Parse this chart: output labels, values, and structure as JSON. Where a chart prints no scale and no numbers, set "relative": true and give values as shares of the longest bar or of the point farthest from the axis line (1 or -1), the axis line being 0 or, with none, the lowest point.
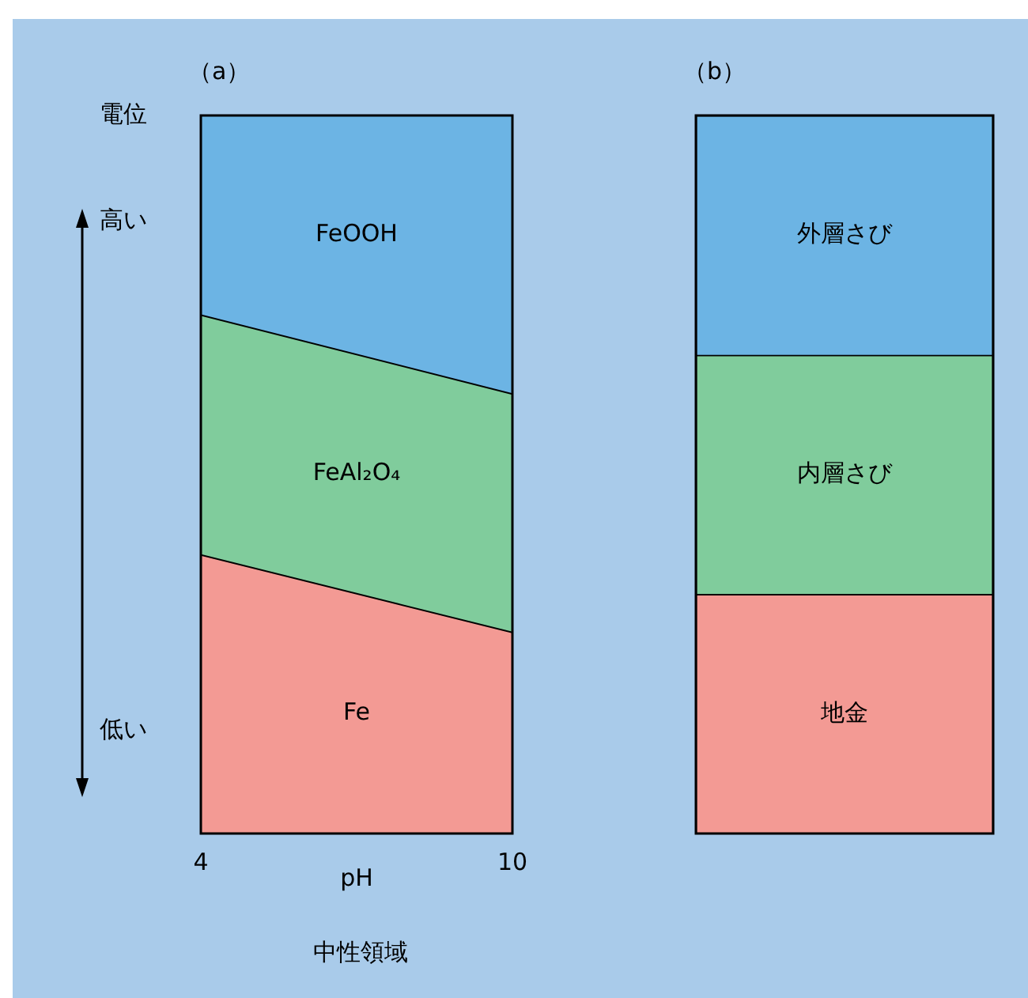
{
  "chart_data": [
    {
      "type": "area",
      "title": "（a）",
      "xlabel": "pH",
      "ylabel": "電位",
      "relative": true,
      "stacked": true,
      "x": [
        4,
        10
      ],
      "xlim": [
        4,
        10
      ],
      "xticks": [
        4,
        10
      ],
      "tick_labels": "x",
      "legend": false,
      "series": [
        {
          "name": "Fe",
          "color": "#f39a94",
          "values": [
            0.388,
            0.28
          ]
        },
        {
          "name": "FeAl₂O₄",
          "color": "#80cc9c",
          "values": [
            0.334,
            0.332
          ]
        },
        {
          "name": "FeOOH",
          "color": "#6cb4e4",
          "values": [
            0.278,
            0.388
          ]
        }
      ],
      "annotations": [
        "高い",
        "低い",
        "中性領域"
      ]
    },
    {
      "type": "bar",
      "title": "（b）",
      "relative": true,
      "stacked": true,
      "categories": [
        null
      ],
      "tick_labels": false,
      "legend": false,
      "series": [
        {
          "name": "地金",
          "color": "#f39a94",
          "values": [
            0.333
          ]
        },
        {
          "name": "内層さび",
          "color": "#80cc9c",
          "values": [
            0.333
          ]
        },
        {
          "name": "外層さび",
          "color": "#6cb4e4",
          "values": [
            0.334
          ]
        }
      ]
    }
  ]
}
